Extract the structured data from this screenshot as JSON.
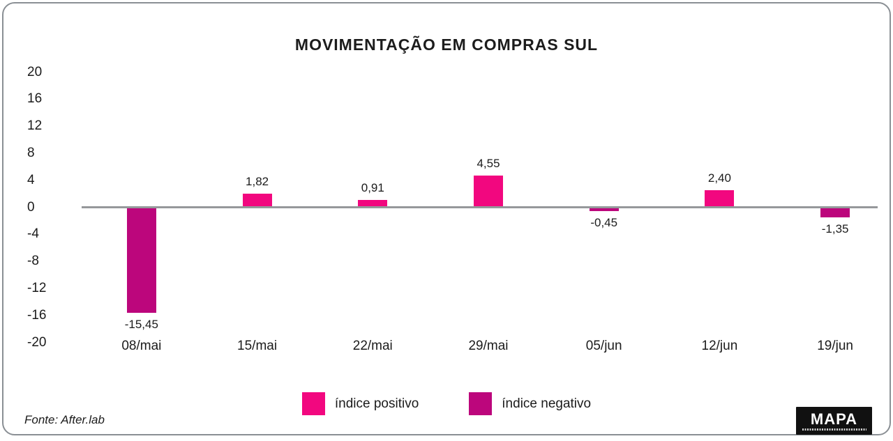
{
  "card": {
    "title": "MOVIMENTAÇÃO EM COMPRAS SUL"
  },
  "chart_data": {
    "type": "bar",
    "title": "MOVIMENTAÇÃO EM COMPRAS SUL",
    "categories": [
      "08/mai",
      "15/mai",
      "22/mai",
      "29/mai",
      "05/jun",
      "12/jun",
      "19/jun"
    ],
    "values": [
      -15.45,
      1.82,
      0.91,
      4.55,
      -0.45,
      2.4,
      -1.35
    ],
    "value_labels": [
      "-15,45",
      "1,82",
      "0,91",
      "4,55",
      "-0,45",
      "2,40",
      "-1,35"
    ],
    "xlabel": "",
    "ylabel": "",
    "ylim": [
      -20,
      20
    ],
    "yticks": [
      20,
      16,
      12,
      8,
      4,
      0,
      -4,
      -8,
      -12,
      -16,
      -20
    ],
    "grid": false,
    "legend_position": "bottom",
    "colors": {
      "positive": "#F2077F",
      "negative": "#BC067C",
      "axis_line": "#96989b"
    },
    "legend": [
      {
        "label": "índice positivo",
        "color": "#F2077F"
      },
      {
        "label": "índice negativo",
        "color": "#BC067C"
      }
    ]
  },
  "footer": {
    "source": "Fonte: After.lab",
    "logo_text": "MAPA"
  }
}
